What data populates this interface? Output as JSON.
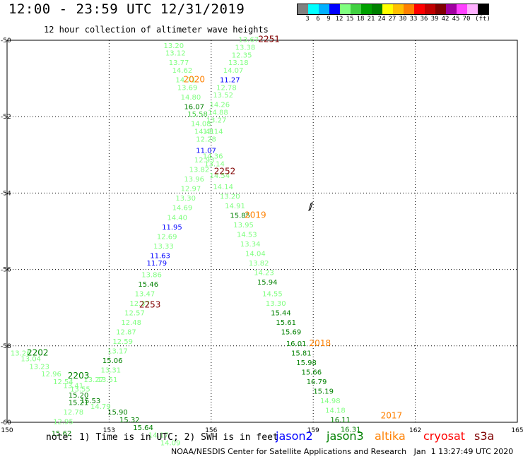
{
  "title": "12:00 - 23:59 UTC 12/31/2019",
  "subtitle": "12 hour collection of altimeter wave heights",
  "legend": {
    "colors": [
      "#808080",
      "#00ffff",
      "#00b0ff",
      "#0000ff",
      "#80ff80",
      "#40d040",
      "#00a000",
      "#008000",
      "#ffff00",
      "#ffc000",
      "#ff8000",
      "#ff0000",
      "#c00000",
      "#800000",
      "#a000a0",
      "#ff40ff",
      "#ffb0ff",
      "#000000"
    ],
    "labels": [
      "3",
      "6",
      "9",
      "12",
      "15",
      "18",
      "21",
      "24",
      "27",
      "30",
      "33",
      "36",
      "39",
      "42",
      "45",
      "70",
      "(ft)"
    ]
  },
  "satellites": [
    {
      "name": "jason2",
      "color": "#0000ff"
    },
    {
      "name": "jason3",
      "color": "#008000"
    },
    {
      "name": "altika",
      "color": "#ff8000"
    },
    {
      "name": "cryosat",
      "color": "#ff0000"
    },
    {
      "name": "s3a",
      "color": "#800000"
    }
  ],
  "note": "note: 1) Time is in UTC; 2) SWH is in feet",
  "footer": "NOAA/NESDIS Center for Satellite Applications and Research   Jan  1 13:27:49 UTC 2020",
  "chart_data": {
    "type": "scatter",
    "xlim": [
      150,
      165
    ],
    "ylim": [
      -60,
      -50
    ],
    "xticks": [
      "150",
      "153",
      "156",
      "159",
      "162",
      "165"
    ],
    "yticks": [
      "-50",
      "-52",
      "-54",
      "-56",
      "-58",
      "-60"
    ],
    "grid": true,
    "time_labels": [
      {
        "label": "2251",
        "lon": 157.7,
        "lat": -50.05,
        "color": "#800000"
      },
      {
        "label": "2020",
        "lon": 155.5,
        "lat": -51.1,
        "color": "#ff8000"
      },
      {
        "label": "2252",
        "lon": 156.4,
        "lat": -53.5,
        "color": "#800000"
      },
      {
        "label": "2019",
        "lon": 157.3,
        "lat": -54.65,
        "color": "#ff8000"
      },
      {
        "label": "2253",
        "lon": 154.2,
        "lat": -57.0,
        "color": "#800000"
      },
      {
        "label": "2018",
        "lon": 159.2,
        "lat": -58.0,
        "color": "#ff8000"
      },
      {
        "label": "2202",
        "lon": 150.9,
        "lat": -58.25,
        "color": "#008000"
      },
      {
        "label": "2203",
        "lon": 152.1,
        "lat": -58.85,
        "color": "#008000"
      },
      {
        "label": "2017",
        "lon": 161.3,
        "lat": -59.9,
        "color": "#ff8000"
      }
    ],
    "points": [
      {
        "v": "13.67",
        "lon": 157.1,
        "lat": -50.05,
        "c": "#80ff80"
      },
      {
        "v": "13.38",
        "lon": 157.0,
        "lat": -50.25,
        "c": "#80ff80"
      },
      {
        "v": "12.35",
        "lon": 156.9,
        "lat": -50.45,
        "c": "#80ff80"
      },
      {
        "v": "13.18",
        "lon": 156.8,
        "lat": -50.65,
        "c": "#80ff80"
      },
      {
        "v": "14.07",
        "lon": 156.65,
        "lat": -50.85,
        "c": "#80ff80"
      },
      {
        "v": "11.27",
        "lon": 156.55,
        "lat": -51.1,
        "c": "#0000ff"
      },
      {
        "v": "12.78",
        "lon": 156.45,
        "lat": -51.3,
        "c": "#80ff80"
      },
      {
        "v": "13.52",
        "lon": 156.35,
        "lat": -51.5,
        "c": "#80ff80"
      },
      {
        "v": "14.26",
        "lon": 156.25,
        "lat": -51.75,
        "c": "#80ff80"
      },
      {
        "v": "14.88",
        "lon": 156.2,
        "lat": -51.95,
        "c": "#80ff80"
      },
      {
        "v": "13.27",
        "lon": 156.15,
        "lat": -52.15,
        "c": "#80ff80"
      },
      {
        "v": "13.14",
        "lon": 156.05,
        "lat": -52.45,
        "c": "#80ff80"
      },
      {
        "v": "13.20",
        "lon": 154.9,
        "lat": -50.2,
        "c": "#80ff80"
      },
      {
        "v": "13.12",
        "lon": 154.95,
        "lat": -50.4,
        "c": "#80ff80"
      },
      {
        "v": "13.77",
        "lon": 155.05,
        "lat": -50.65,
        "c": "#80ff80"
      },
      {
        "v": "14.62",
        "lon": 155.15,
        "lat": -50.85,
        "c": "#80ff80"
      },
      {
        "v": "14.71",
        "lon": 155.25,
        "lat": -51.1,
        "c": "#80ff80"
      },
      {
        "v": "13.69",
        "lon": 155.3,
        "lat": -51.3,
        "c": "#80ff80"
      },
      {
        "v": "14.80",
        "lon": 155.4,
        "lat": -51.55,
        "c": "#80ff80"
      },
      {
        "v": "16.07",
        "lon": 155.5,
        "lat": -51.8,
        "c": "#008000"
      },
      {
        "v": "15.58",
        "lon": 155.6,
        "lat": -52.0,
        "c": "#40d040"
      },
      {
        "v": "14.08",
        "lon": 155.7,
        "lat": -52.25,
        "c": "#80ff80"
      },
      {
        "v": "14.41",
        "lon": 155.8,
        "lat": -52.45,
        "c": "#80ff80"
      },
      {
        "v": "12.28",
        "lon": 155.85,
        "lat": -52.65,
        "c": "#80ff80"
      },
      {
        "v": "11.07",
        "lon": 155.85,
        "lat": -52.95,
        "c": "#0000ff"
      },
      {
        "v": "12.93",
        "lon": 155.8,
        "lat": -53.2,
        "c": "#80ff80"
      },
      {
        "v": "14.36",
        "lon": 156.05,
        "lat": -53.1,
        "c": "#80ff80"
      },
      {
        "v": "13.14",
        "lon": 156.1,
        "lat": -53.3,
        "c": "#80ff80"
      },
      {
        "v": "13.82",
        "lon": 155.65,
        "lat": -53.45,
        "c": "#80ff80"
      },
      {
        "v": "14.54",
        "lon": 156.25,
        "lat": -53.6,
        "c": "#80ff80"
      },
      {
        "v": "13.96",
        "lon": 155.5,
        "lat": -53.7,
        "c": "#80ff80"
      },
      {
        "v": "14.14",
        "lon": 156.35,
        "lat": -53.9,
        "c": "#80ff80"
      },
      {
        "v": "12.97",
        "lon": 155.4,
        "lat": -53.95,
        "c": "#80ff80"
      },
      {
        "v": "13.20",
        "lon": 156.55,
        "lat": -54.15,
        "c": "#80ff80"
      },
      {
        "v": "13.30",
        "lon": 155.25,
        "lat": -54.2,
        "c": "#80ff80"
      },
      {
        "v": "14.91",
        "lon": 156.7,
        "lat": -54.4,
        "c": "#80ff80"
      },
      {
        "v": "14.69",
        "lon": 155.15,
        "lat": -54.45,
        "c": "#80ff80"
      },
      {
        "v": "15.85",
        "lon": 156.85,
        "lat": -54.65,
        "c": "#008000"
      },
      {
        "v": "14.40",
        "lon": 155.0,
        "lat": -54.7,
        "c": "#80ff80"
      },
      {
        "v": "13.95",
        "lon": 156.95,
        "lat": -54.9,
        "c": "#80ff80"
      },
      {
        "v": "11.95",
        "lon": 154.85,
        "lat": -54.95,
        "c": "#0000ff"
      },
      {
        "v": "14.53",
        "lon": 157.05,
        "lat": -55.15,
        "c": "#80ff80"
      },
      {
        "v": "12.69",
        "lon": 154.7,
        "lat": -55.2,
        "c": "#80ff80"
      },
      {
        "v": "13.34",
        "lon": 157.15,
        "lat": -55.4,
        "c": "#80ff80"
      },
      {
        "v": "13.33",
        "lon": 154.6,
        "lat": -55.45,
        "c": "#80ff80"
      },
      {
        "v": "11.63",
        "lon": 154.5,
        "lat": -55.7,
        "c": "#0000ff"
      },
      {
        "v": "14.04",
        "lon": 157.3,
        "lat": -55.65,
        "c": "#80ff80"
      },
      {
        "v": "11.79",
        "lon": 154.4,
        "lat": -55.9,
        "c": "#0000ff"
      },
      {
        "v": "13.82",
        "lon": 157.4,
        "lat": -55.9,
        "c": "#80ff80"
      },
      {
        "v": "13.86",
        "lon": 154.25,
        "lat": -56.2,
        "c": "#80ff80"
      },
      {
        "v": "14.23",
        "lon": 157.55,
        "lat": -56.15,
        "c": "#80ff80"
      },
      {
        "v": "15.46",
        "lon": 154.15,
        "lat": -56.45,
        "c": "#008000"
      },
      {
        "v": "15.94",
        "lon": 157.65,
        "lat": -56.4,
        "c": "#008000"
      },
      {
        "v": "13.47",
        "lon": 154.05,
        "lat": -56.7,
        "c": "#80ff80"
      },
      {
        "v": "14.55",
        "lon": 157.8,
        "lat": -56.7,
        "c": "#80ff80"
      },
      {
        "v": "12.37",
        "lon": 153.9,
        "lat": -56.95,
        "c": "#80ff80"
      },
      {
        "v": "13.30",
        "lon": 157.9,
        "lat": -56.95,
        "c": "#80ff80"
      },
      {
        "v": "12.57",
        "lon": 153.75,
        "lat": -57.2,
        "c": "#80ff80"
      },
      {
        "v": "15.44",
        "lon": 158.05,
        "lat": -57.2,
        "c": "#008000"
      },
      {
        "v": "12.48",
        "lon": 153.65,
        "lat": -57.45,
        "c": "#80ff80"
      },
      {
        "v": "15.61",
        "lon": 158.2,
        "lat": -57.45,
        "c": "#008000"
      },
      {
        "v": "12.87",
        "lon": 153.5,
        "lat": -57.7,
        "c": "#80ff80"
      },
      {
        "v": "15.69",
        "lon": 158.35,
        "lat": -57.7,
        "c": "#008000"
      },
      {
        "v": "12.59",
        "lon": 153.4,
        "lat": -57.95,
        "c": "#80ff80"
      },
      {
        "v": "16.01",
        "lon": 158.5,
        "lat": -58.0,
        "c": "#008000"
      },
      {
        "v": "13.17",
        "lon": 153.25,
        "lat": -58.2,
        "c": "#80ff80"
      },
      {
        "v": "15.81",
        "lon": 158.65,
        "lat": -58.25,
        "c": "#008000"
      },
      {
        "v": "15.06",
        "lon": 153.1,
        "lat": -58.45,
        "c": "#008000"
      },
      {
        "v": "15.98",
        "lon": 158.8,
        "lat": -58.5,
        "c": "#008000"
      },
      {
        "v": "13.31",
        "lon": 153.05,
        "lat": -58.7,
        "c": "#80ff80"
      },
      {
        "v": "15.66",
        "lon": 158.95,
        "lat": -58.75,
        "c": "#008000"
      },
      {
        "v": "13.51",
        "lon": 152.95,
        "lat": -58.95,
        "c": "#80ff80"
      },
      {
        "v": "16.79",
        "lon": 159.1,
        "lat": -59.0,
        "c": "#008000"
      },
      {
        "v": "15.19",
        "lon": 159.3,
        "lat": -59.25,
        "c": "#008000"
      },
      {
        "v": "14.98",
        "lon": 159.5,
        "lat": -59.5,
        "c": "#80ff80"
      },
      {
        "v": "14.18",
        "lon": 159.65,
        "lat": -59.75,
        "c": "#80ff80"
      },
      {
        "v": "16.11",
        "lon": 159.8,
        "lat": -60.0,
        "c": "#008000"
      },
      {
        "v": "16.31",
        "lon": 160.1,
        "lat": -60.25,
        "c": "#008000"
      },
      {
        "v": "13.26",
        "lon": 150.4,
        "lat": -58.25,
        "c": "#80ff80"
      },
      {
        "v": "13.04",
        "lon": 150.7,
        "lat": -58.4,
        "c": "#80ff80"
      },
      {
        "v": "13.23",
        "lon": 150.95,
        "lat": -58.6,
        "c": "#80ff80"
      },
      {
        "v": "12.96",
        "lon": 151.3,
        "lat": -58.8,
        "c": "#80ff80"
      },
      {
        "v": "12.54",
        "lon": 151.65,
        "lat": -59.0,
        "c": "#80ff80"
      },
      {
        "v": "13.41",
        "lon": 151.95,
        "lat": -59.1,
        "c": "#80ff80"
      },
      {
        "v": "13.55",
        "lon": 152.15,
        "lat": -59.2,
        "c": "#80ff80"
      },
      {
        "v": "13.27",
        "lon": 152.55,
        "lat": -58.95,
        "c": "#80ff80"
      },
      {
        "v": "15.20",
        "lon": 152.1,
        "lat": -59.35,
        "c": "#008000"
      },
      {
        "v": "15.53",
        "lon": 152.45,
        "lat": -59.5,
        "c": "#008000"
      },
      {
        "v": "15.21",
        "lon": 152.1,
        "lat": -59.55,
        "c": "#008000"
      },
      {
        "v": "14.79",
        "lon": 152.75,
        "lat": -59.65,
        "c": "#80ff80"
      },
      {
        "v": "12.78",
        "lon": 151.95,
        "lat": -59.8,
        "c": "#80ff80"
      },
      {
        "v": "15.90",
        "lon": 153.25,
        "lat": -59.8,
        "c": "#008000"
      },
      {
        "v": "15.32",
        "lon": 153.6,
        "lat": -60.0,
        "c": "#008000"
      },
      {
        "v": "12.95",
        "lon": 151.65,
        "lat": -60.05,
        "c": "#80ff80"
      },
      {
        "v": "15.64",
        "lon": 154.0,
        "lat": -60.2,
        "c": "#008000"
      },
      {
        "v": "15.62",
        "lon": 151.6,
        "lat": -60.35,
        "c": "#008000"
      },
      {
        "v": "14.17",
        "lon": 154.45,
        "lat": -60.4,
        "c": "#80ff80"
      },
      {
        "v": "14.09",
        "lon": 154.8,
        "lat": -60.6,
        "c": "#80ff80"
      }
    ]
  }
}
